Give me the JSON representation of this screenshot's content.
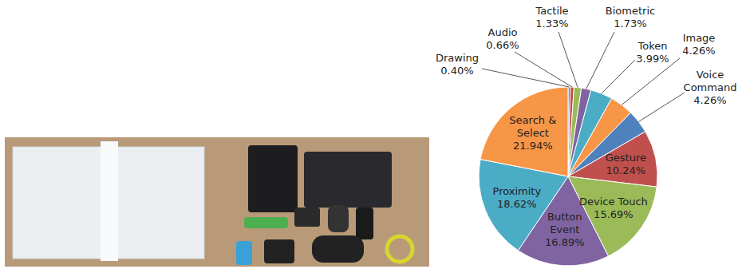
{
  "chart_data": {
    "type": "pie",
    "categories": [
      "Drawing",
      "Audio",
      "Tactile",
      "Biometric",
      "Token",
      "Image",
      "Voice Command",
      "Gesture",
      "Device Touch",
      "Button Event",
      "Proximity",
      "Search & Select"
    ],
    "values": [
      0.4,
      0.66,
      1.33,
      1.73,
      3.99,
      4.26,
      4.26,
      10.24,
      15.69,
      16.89,
      18.62,
      21.94
    ],
    "value_labels": [
      "0.40%",
      "0.66%",
      "1.33%",
      "1.73%",
      "3.99%",
      "4.26%",
      "4.26%",
      "10.24%",
      "15.69%",
      "16.89%",
      "18.62%",
      "21.94%"
    ],
    "colors": [
      "#4f81bd",
      "#c0504d",
      "#9bbb59",
      "#8064a2",
      "#4bacc6",
      "#f79646",
      "#4f81bd",
      "#c0504d",
      "#9bbb59",
      "#8064a2",
      "#4bacc6",
      "#f79646"
    ],
    "data_labels": true
  }
}
